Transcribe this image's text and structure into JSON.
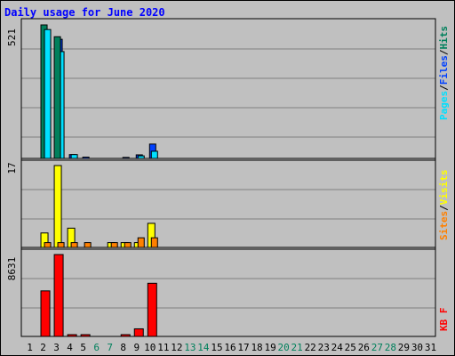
{
  "chart_data": {
    "title": "Daily usage for June 2020",
    "days": [
      "1",
      "2",
      "3",
      "4",
      "5",
      "6",
      "7",
      "8",
      "9",
      "10",
      "11",
      "12",
      "13",
      "14",
      "15",
      "16",
      "17",
      "18",
      "19",
      "20",
      "21",
      "22",
      "23",
      "24",
      "25",
      "26",
      "27",
      "28",
      "29",
      "30",
      "31"
    ],
    "weekend_days": [
      "6",
      "7",
      "13",
      "14",
      "20",
      "21",
      "27",
      "28"
    ],
    "panels": [
      {
        "type": "bar",
        "max_label": "521",
        "ymax": 521,
        "side_label": [
          "Pages",
          "Files",
          "Hits"
        ],
        "side_colors": [
          "#00e0ff",
          "#0040ff",
          "#00805c"
        ],
        "series": [
          {
            "name": "Hits",
            "color": "#00805c",
            "values": [
              0,
              521,
              0,
              0,
              0,
              0,
              0,
              0,
              0,
              0,
              0,
              0,
              0,
              0,
              0,
              0,
              0,
              0,
              0,
              0,
              0,
              0,
              0,
              0,
              0,
              0,
              0,
              0,
              0,
              0,
              0
            ]
          },
          {
            "name": "Files",
            "color": "#0040ff",
            "values": [
              0,
              0,
              465,
              15,
              5,
              0,
              0,
              4,
              14,
              56,
              0,
              0,
              0,
              0,
              0,
              0,
              0,
              0,
              0,
              0,
              0,
              0,
              0,
              0,
              0,
              0,
              0,
              0,
              0,
              0,
              0
            ]
          },
          {
            "name": "Pages",
            "color": "#00e0ff",
            "values": [
              0,
              503,
              417,
              15,
              0,
              0,
              0,
              0,
              10,
              28,
              0,
              0,
              0,
              0,
              0,
              0,
              0,
              0,
              0,
              0,
              0,
              0,
              0,
              0,
              0,
              0,
              0,
              0,
              0,
              0,
              0
            ]
          },
          {
            "name": "Hits2",
            "color": "#00805c",
            "values": [
              0,
              0,
              475,
              0,
              0,
              0,
              0,
              0,
              0,
              0,
              0,
              0,
              0,
              0,
              0,
              0,
              0,
              0,
              0,
              0,
              0,
              0,
              0,
              0,
              0,
              0,
              0,
              0,
              0,
              0,
              0
            ]
          }
        ]
      },
      {
        "type": "bar",
        "max_label": "17",
        "ymax": 17,
        "side_label": [
          "Sites",
          "Visits"
        ],
        "side_colors": [
          "#ff8000",
          "#ffff00"
        ],
        "series": [
          {
            "name": "Visits",
            "color": "#ffff00",
            "values": [
              0,
              3,
              17,
              4,
              0,
              0,
              1,
              1,
              1,
              5,
              0,
              0,
              0,
              0,
              0,
              0,
              0,
              0,
              0,
              0,
              0,
              0,
              0,
              0,
              0,
              0,
              0,
              0,
              0,
              0,
              0
            ]
          },
          {
            "name": "Sites",
            "color": "#ff8000",
            "values": [
              0,
              1,
              1,
              1,
              1,
              0,
              1,
              1,
              2,
              2,
              0,
              0,
              0,
              0,
              0,
              0,
              0,
              0,
              0,
              0,
              0,
              0,
              0,
              0,
              0,
              0,
              0,
              0,
              0,
              0,
              0
            ]
          }
        ]
      },
      {
        "type": "bar",
        "max_label": "8631",
        "ymax": 8631,
        "side_label": [
          "KB F"
        ],
        "side_colors": [
          "#ff0000"
        ],
        "series": [
          {
            "name": "KB F",
            "color": "#ff0000",
            "values": [
              0,
              4800,
              8631,
              40,
              50,
              0,
              0,
              40,
              800,
              5600,
              0,
              0,
              0,
              0,
              0,
              0,
              0,
              0,
              0,
              0,
              0,
              0,
              0,
              0,
              0,
              0,
              0,
              0,
              0,
              0,
              0
            ]
          }
        ]
      }
    ]
  }
}
